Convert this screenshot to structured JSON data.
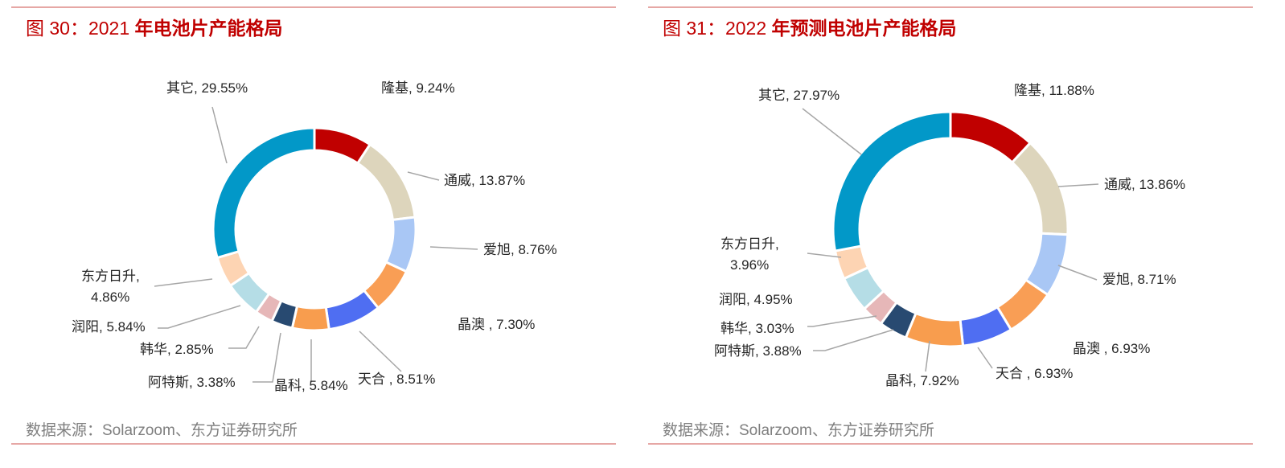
{
  "colors": {
    "accent": "#c00000",
    "rule": "#e6a7a5",
    "source_text": "#7f7f7f",
    "segments": {
      "隆基": "#c00000",
      "通威": "#ddd5bc",
      "爱旭": "#a9c7f5",
      "晶澳": "#f99e55",
      "天合": "#4f6ef2",
      "晶科": "#f89d4e",
      "阿特斯": "#284a71",
      "韩华": "#e6b7b8",
      "润阳": "#b5dde6",
      "东方日升": "#fdd4b3",
      "其它": "#0298c8"
    }
  },
  "charts": [
    {
      "title_prefix": "图 30：2021 ",
      "title_main": "年电池片产能格局",
      "source": "数据来源：Solarzoom、东方证券研究所"
    },
    {
      "title_prefix": "图 31：2022 ",
      "title_main": "年预测电池片产能格局",
      "source": "数据来源：Solarzoom、东方证券研究所"
    }
  ],
  "chart_data": [
    {
      "type": "pie",
      "donut": true,
      "title": "图 30：2021 年电池片产能格局",
      "unit": "%",
      "categories": [
        "隆基",
        "通威",
        "爱旭",
        "晶澳",
        "天合",
        "晶科",
        "阿特斯",
        "韩华",
        "润阳",
        "东方日升",
        "其它"
      ],
      "values": [
        9.24,
        13.87,
        8.76,
        7.3,
        8.51,
        5.84,
        3.38,
        2.85,
        5.84,
        4.86,
        29.55
      ],
      "labels": [
        [
          "隆基, 9.24%"
        ],
        [
          "通威, 13.87%"
        ],
        [
          "爱旭, 8.76%"
        ],
        [
          "晶澳 , 7.30%"
        ],
        [
          "天合 , 8.51%"
        ],
        [
          "晶科, 5.84%"
        ],
        [
          "阿特斯, 3.38%"
        ],
        [
          "韩华, 2.85%"
        ],
        [
          "润阳, 5.84%"
        ],
        [
          "东方日升,",
          "4.86%"
        ],
        [
          "其它, 29.55%"
        ]
      ]
    },
    {
      "type": "pie",
      "donut": true,
      "title": "图 31：2022 年预测电池片产能格局",
      "unit": "%",
      "categories": [
        "隆基",
        "通威",
        "爱旭",
        "晶澳",
        "天合",
        "晶科",
        "阿特斯",
        "韩华",
        "润阳",
        "东方日升",
        "其它"
      ],
      "values": [
        11.88,
        13.86,
        8.71,
        6.93,
        6.93,
        7.92,
        3.88,
        3.03,
        4.95,
        3.96,
        27.97
      ],
      "labels": [
        [
          "隆基, 11.88%"
        ],
        [
          "通威, 13.86%"
        ],
        [
          "爱旭, 8.71%"
        ],
        [
          "晶澳 , 6.93%"
        ],
        [
          "天合 , 6.93%"
        ],
        [
          "晶科, 7.92%"
        ],
        [
          "阿特斯, 3.88%"
        ],
        [
          "韩华, 3.03%"
        ],
        [
          "润阳, 4.95%"
        ],
        [
          "东方日升,",
          "3.96%"
        ],
        [
          "其它, 27.97%"
        ]
      ]
    }
  ]
}
